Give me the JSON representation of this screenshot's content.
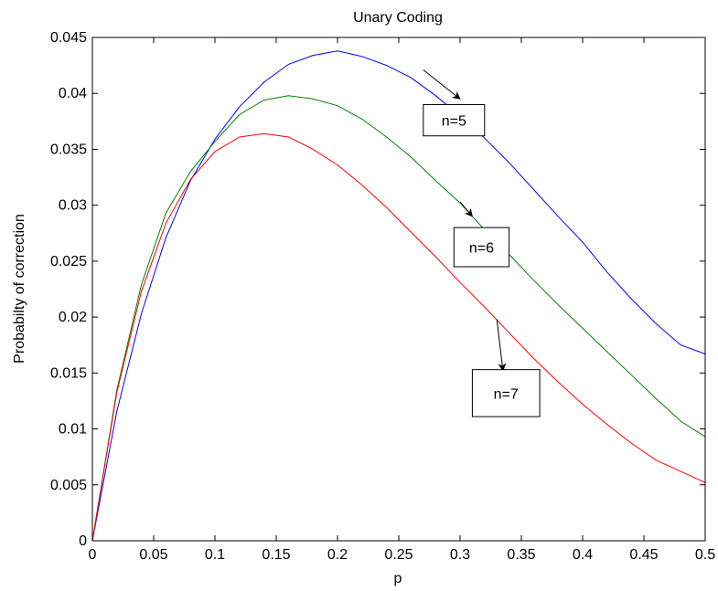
{
  "chart_data": {
    "type": "line",
    "title": "Unary Coding",
    "xlabel": "p",
    "ylabel": "Probabilty of correction",
    "xlim": [
      0,
      0.5
    ],
    "ylim": [
      0,
      0.045
    ],
    "grid": false,
    "x_ticks": [
      "0",
      "0.05",
      "0.1",
      "0.15",
      "0.2",
      "0.25",
      "0.3",
      "0.35",
      "0.4",
      "0.45",
      "0.5"
    ],
    "y_ticks": [
      "0",
      "0.005",
      "0.01",
      "0.015",
      "0.02",
      "0.025",
      "0.03",
      "0.035",
      "0.04",
      "0.045"
    ],
    "x": [
      0,
      0.02,
      0.04,
      0.06,
      0.08,
      0.1,
      0.12,
      0.14,
      0.16,
      0.18,
      0.2,
      0.22,
      0.24,
      0.26,
      0.28,
      0.3,
      0.32,
      0.34,
      0.36,
      0.38,
      0.4,
      0.42,
      0.44,
      0.46,
      0.48,
      0.5
    ],
    "series": [
      {
        "name": "n=5",
        "color": "#0000ff",
        "values": [
          0,
          0.0116,
          0.0203,
          0.0271,
          0.0322,
          0.0359,
          0.0388,
          0.041,
          0.0426,
          0.0434,
          0.0438,
          0.0433,
          0.0425,
          0.0414,
          0.0398,
          0.038,
          0.036,
          0.0338,
          0.0314,
          0.029,
          0.0267,
          0.024,
          0.0216,
          0.0194,
          0.0175,
          0.0167
        ]
      },
      {
        "name": "n=6",
        "color": "#008000",
        "values": [
          0,
          0.0135,
          0.0229,
          0.0293,
          0.033,
          0.0357,
          0.0381,
          0.0394,
          0.0398,
          0.0395,
          0.0389,
          0.0377,
          0.0361,
          0.0343,
          0.0322,
          0.0302,
          0.0278,
          0.0256,
          0.0233,
          0.0211,
          0.019,
          0.0169,
          0.0148,
          0.0127,
          0.0107,
          0.0093
        ]
      },
      {
        "name": "n=7",
        "color": "#ff0000",
        "values": [
          0,
          0.0133,
          0.0223,
          0.0284,
          0.0323,
          0.0348,
          0.0361,
          0.0364,
          0.0361,
          0.035,
          0.0336,
          0.0318,
          0.0298,
          0.0276,
          0.0254,
          0.0231,
          0.0209,
          0.0186,
          0.0163,
          0.0142,
          0.0122,
          0.0104,
          0.0087,
          0.0072,
          0.0062,
          0.0052
        ]
      }
    ],
    "annotations": [
      {
        "text": "n=5",
        "arrow_from": [
          0.27,
          0.0421
        ],
        "arrow_to": [
          0.3,
          0.0395
        ],
        "box": [
          0.27,
          0.0362,
          0.32,
          0.039
        ]
      },
      {
        "text": "n=6",
        "arrow_from": [
          0.3,
          0.0303
        ],
        "arrow_to": [
          0.31,
          0.029
        ],
        "box": [
          0.295,
          0.0245,
          0.34,
          0.028
        ]
      },
      {
        "text": "n=7",
        "arrow_from": [
          0.33,
          0.0198
        ],
        "arrow_to": [
          0.335,
          0.0152
        ],
        "box": [
          0.31,
          0.0111,
          0.365,
          0.0153
        ]
      }
    ]
  }
}
